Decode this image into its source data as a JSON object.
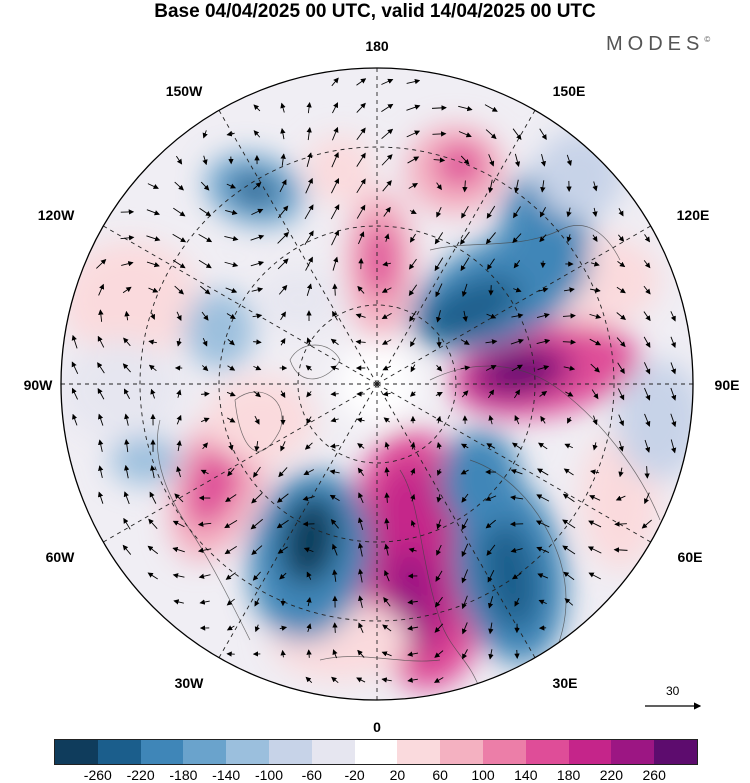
{
  "title": "Base 04/04/2025 00 UTC, valid 14/04/2025 00 UTC",
  "brand": "MODES",
  "brand_mark": "©",
  "longitude_labels": {
    "top": "180",
    "bottom": "0",
    "left": "90W",
    "right": "90E",
    "upper_left": "150W",
    "upper_right": "150E",
    "mid_upper_left": "120W",
    "mid_upper_right": "120E",
    "mid_lower_left": "60W",
    "mid_lower_right": "60E",
    "lower_left": "30W",
    "lower_right": "30E"
  },
  "reference_vector": {
    "label": "30",
    "icon": "arrow-right-icon"
  },
  "colorbar": {
    "colors": [
      "#0f3c5c",
      "#1b5e8c",
      "#3f86b8",
      "#6aa3cc",
      "#9bbfdd",
      "#c7d3e8",
      "#e6e6f0",
      "#ffffff",
      "#fadadd",
      "#f4b1c1",
      "#ec7ea8",
      "#df4d98",
      "#c5258a",
      "#9c1683",
      "#5d0c6e"
    ],
    "ticks": [
      "-260",
      "-220",
      "-180",
      "-140",
      "-100",
      "-60",
      "-20",
      "20",
      "60",
      "100",
      "140",
      "180",
      "220",
      "260"
    ]
  }
}
